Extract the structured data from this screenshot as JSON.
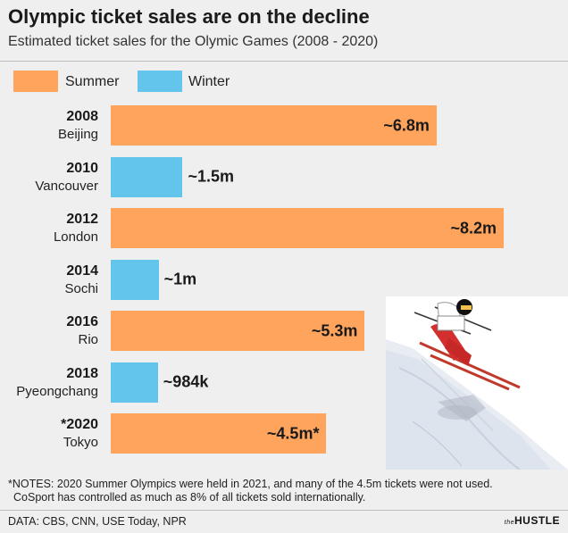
{
  "title": "Olympic ticket sales are on the decline",
  "subtitle": "Estimated ticket sales for the Olymic Games (2008 - 2020)",
  "colors": {
    "summer": "#fea45c",
    "winter": "#63c5ec"
  },
  "legend": [
    {
      "label": "Summer",
      "color": "#fea45c"
    },
    {
      "label": "Winter",
      "color": "#63c5ec"
    }
  ],
  "chart_data": {
    "type": "bar",
    "orientation": "horizontal",
    "title": "Olympic ticket sales are on the decline",
    "subtitle": "Estimated ticket sales for the Olymic Games (2008 - 2020)",
    "units": "millions of tickets",
    "legend_position": "top-left",
    "grid": false,
    "xlim": [
      0,
      8.2
    ],
    "bars": [
      {
        "year": "2008",
        "city": "Beijing",
        "season": "Summer",
        "value": 6.8,
        "label": "~6.8m"
      },
      {
        "year": "2010",
        "city": "Vancouver",
        "season": "Winter",
        "value": 1.5,
        "label": "~1.5m"
      },
      {
        "year": "2012",
        "city": "London",
        "season": "Summer",
        "value": 8.2,
        "label": "~8.2m"
      },
      {
        "year": "2014",
        "city": "Sochi",
        "season": "Winter",
        "value": 1.0,
        "label": "~1m"
      },
      {
        "year": "2016",
        "city": "Rio",
        "season": "Summer",
        "value": 5.3,
        "label": "~5.3m"
      },
      {
        "year": "2018",
        "city": "Pyeongchang",
        "season": "Winter",
        "value": 0.984,
        "label": "~984k"
      },
      {
        "year": "*2020",
        "city": "Tokyo",
        "season": "Summer",
        "value": 4.5,
        "label": "~4.5m*"
      }
    ]
  },
  "notes": [
    "*NOTES: 2020 Summer Olympics were held in 2021, and many of the 4.5m tickets were not used.",
    "CoSport has controlled as much as 8% of all tickets sold internationally."
  ],
  "source": "DATA: CBS, CNN, USE Today, NPR",
  "brand": {
    "prefix": "the",
    "name": "HUSTLE"
  }
}
